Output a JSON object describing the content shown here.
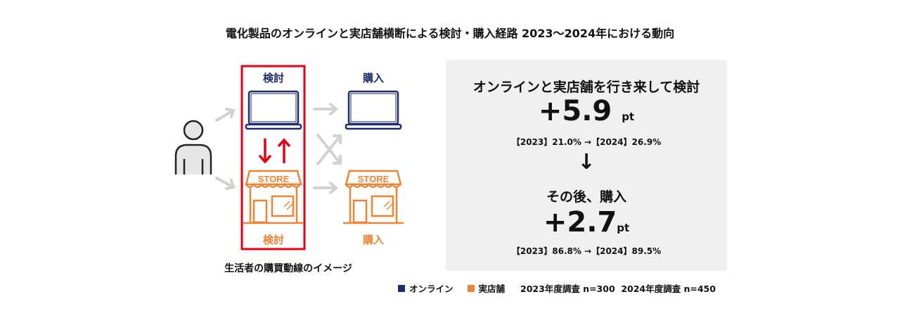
{
  "title": "電化製品のオンラインと実店舗横断による検討・購入経路  2023〜2024年における動向",
  "diagram": {
    "consider_online": "検討",
    "purchase_online": "購入",
    "consider_store": "検討",
    "purchase_store": "購入",
    "store_sign": "STORE",
    "caption": "生活者の購買動線のイメージ"
  },
  "panel": {
    "headline1": "オンラインと実店舗を行き来して検討",
    "value1": "+5.9",
    "unit1": "pt",
    "detail1": "【2023】21.0% →【2024】26.9%",
    "arrow": "↓",
    "headline2": "その後、購入",
    "value2": "+2.7",
    "unit2": "pt",
    "detail2": "【2023】86.8% →【2024】89.5%"
  },
  "legend": {
    "online": "オンライン",
    "store": "実店舗",
    "survey": "2023年度調査 n=300  2024年度調査 n=450"
  },
  "colors": {
    "online": "#1c2c6a",
    "store": "#ee8433",
    "highlight": "#e60012",
    "arrow_gray": "#d0d0d0",
    "panel_bg": "#f0f0f0"
  }
}
